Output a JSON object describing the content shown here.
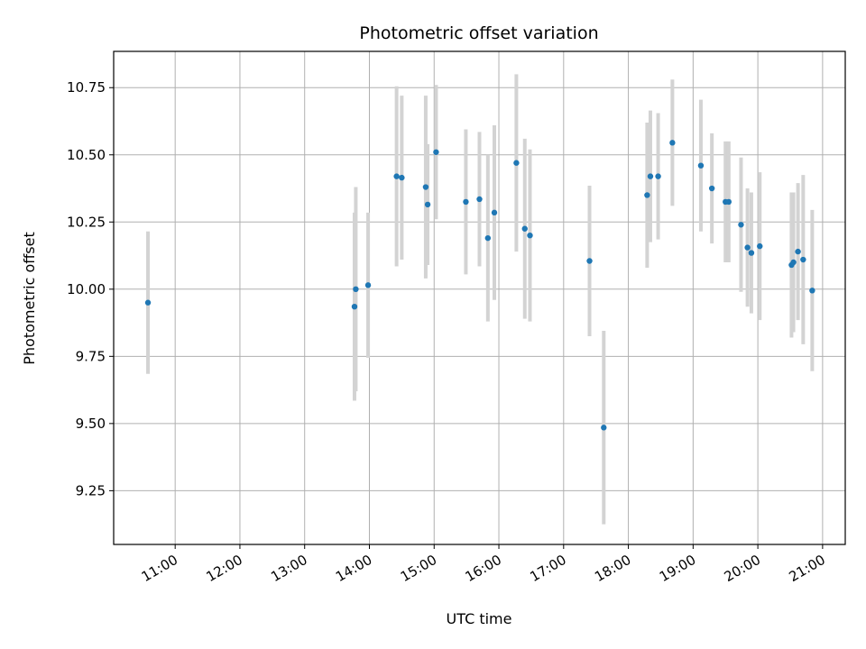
{
  "chart_data": {
    "type": "scatter",
    "title": "Photometric offset variation",
    "xlabel": "UTC time",
    "ylabel": "Photometric offset",
    "x_unit": "hours UTC",
    "xlim": [
      10.05,
      21.35
    ],
    "ylim": [
      9.05,
      10.885
    ],
    "grid": true,
    "x_ticks": [
      {
        "value": 11,
        "label": "11:00"
      },
      {
        "value": 12,
        "label": "12:00"
      },
      {
        "value": 13,
        "label": "13:00"
      },
      {
        "value": 14,
        "label": "14:00"
      },
      {
        "value": 15,
        "label": "15:00"
      },
      {
        "value": 16,
        "label": "16:00"
      },
      {
        "value": 17,
        "label": "17:00"
      },
      {
        "value": 18,
        "label": "18:00"
      },
      {
        "value": 19,
        "label": "19:00"
      },
      {
        "value": 20,
        "label": "20:00"
      },
      {
        "value": 21,
        "label": "21:00"
      }
    ],
    "y_ticks": [
      {
        "value": 9.25,
        "label": "9.25"
      },
      {
        "value": 9.5,
        "label": "9.50"
      },
      {
        "value": 9.75,
        "label": "9.75"
      },
      {
        "value": 10.0,
        "label": "10.00"
      },
      {
        "value": 10.25,
        "label": "10.25"
      },
      {
        "value": 10.5,
        "label": "10.50"
      },
      {
        "value": 10.75,
        "label": "10.75"
      }
    ],
    "point_color": "#1f77b4",
    "errorbar_color": "#d3d3d3",
    "points": [
      {
        "x": 10.58,
        "y": 9.95,
        "err": 0.265
      },
      {
        "x": 13.77,
        "y": 9.935,
        "err": 0.35
      },
      {
        "x": 13.79,
        "y": 10.0,
        "err": 0.38
      },
      {
        "x": 13.98,
        "y": 10.015,
        "err": 0.27
      },
      {
        "x": 14.42,
        "y": 10.42,
        "err": 0.335
      },
      {
        "x": 14.5,
        "y": 10.415,
        "err": 0.305
      },
      {
        "x": 14.87,
        "y": 10.38,
        "err": 0.34
      },
      {
        "x": 14.9,
        "y": 10.315,
        "err": 0.225
      },
      {
        "x": 15.03,
        "y": 10.51,
        "err": 0.25
      },
      {
        "x": 15.49,
        "y": 10.325,
        "err": 0.27
      },
      {
        "x": 15.7,
        "y": 10.335,
        "err": 0.25
      },
      {
        "x": 15.83,
        "y": 10.19,
        "err": 0.31
      },
      {
        "x": 15.93,
        "y": 10.285,
        "err": 0.325
      },
      {
        "x": 16.27,
        "y": 10.47,
        "err": 0.33
      },
      {
        "x": 16.4,
        "y": 10.225,
        "err": 0.335
      },
      {
        "x": 16.48,
        "y": 10.2,
        "err": 0.32
      },
      {
        "x": 17.4,
        "y": 10.105,
        "err": 0.28
      },
      {
        "x": 17.62,
        "y": 9.485,
        "err": 0.36
      },
      {
        "x": 18.29,
        "y": 10.35,
        "err": 0.27
      },
      {
        "x": 18.34,
        "y": 10.42,
        "err": 0.245
      },
      {
        "x": 18.46,
        "y": 10.42,
        "err": 0.235
      },
      {
        "x": 18.68,
        "y": 10.545,
        "err": 0.235
      },
      {
        "x": 19.12,
        "y": 10.46,
        "err": 0.245
      },
      {
        "x": 19.29,
        "y": 10.375,
        "err": 0.205
      },
      {
        "x": 19.5,
        "y": 10.325,
        "err": 0.225
      },
      {
        "x": 19.55,
        "y": 10.325,
        "err": 0.225
      },
      {
        "x": 19.74,
        "y": 10.24,
        "err": 0.25
      },
      {
        "x": 19.84,
        "y": 10.155,
        "err": 0.22
      },
      {
        "x": 19.9,
        "y": 10.135,
        "err": 0.225
      },
      {
        "x": 20.03,
        "y": 10.16,
        "err": 0.275
      },
      {
        "x": 20.52,
        "y": 10.09,
        "err": 0.27
      },
      {
        "x": 20.55,
        "y": 10.1,
        "err": 0.26
      },
      {
        "x": 20.62,
        "y": 10.14,
        "err": 0.255
      },
      {
        "x": 20.7,
        "y": 10.11,
        "err": 0.315
      },
      {
        "x": 20.84,
        "y": 9.995,
        "err": 0.3
      }
    ]
  }
}
